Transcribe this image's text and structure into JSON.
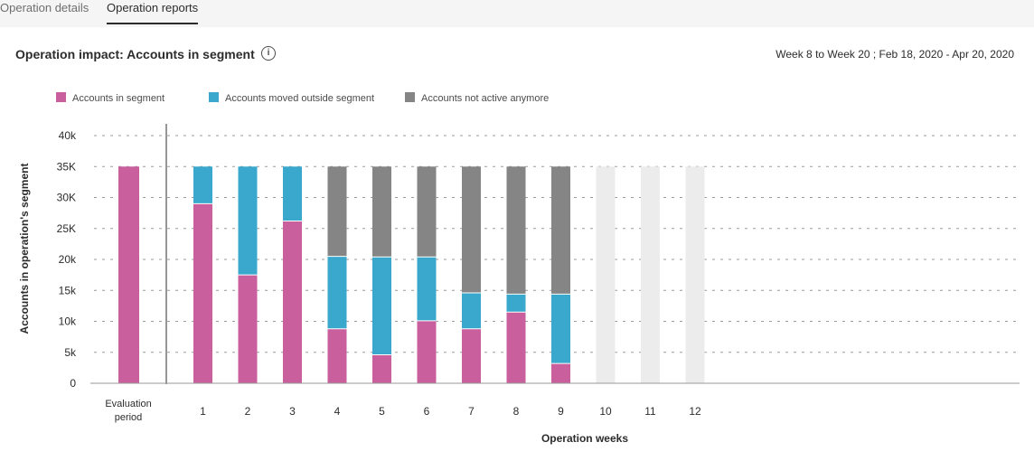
{
  "tabs": [
    {
      "label": "Operation details",
      "active": false
    },
    {
      "label": "Operation reports",
      "active": true
    }
  ],
  "header": {
    "title": "Operation impact: Accounts in segment",
    "info_icon": "info-icon",
    "date_range": "Week 8 to Week 20 ;  Feb 18, 2020 - Apr 20, 2020"
  },
  "colors": {
    "in_segment": "#c95f9c",
    "moved_outside": "#3aa8cc",
    "not_active": "#858585",
    "placeholder": "#ececec"
  },
  "chart_data": {
    "type": "bar",
    "stacked": true,
    "ylabel": "Accounts in operation's segment",
    "xlabel": "Operation weeks",
    "ylim": [
      0,
      40000
    ],
    "yticks": [
      {
        "value": 0,
        "label": "0"
      },
      {
        "value": 5000,
        "label": "5k"
      },
      {
        "value": 10000,
        "label": "10k"
      },
      {
        "value": 15000,
        "label": "15k"
      },
      {
        "value": 20000,
        "label": "20k"
      },
      {
        "value": 25000,
        "label": "25K"
      },
      {
        "value": 30000,
        "label": "30K"
      },
      {
        "value": 35000,
        "label": "35K"
      },
      {
        "value": 40000,
        "label": "40k"
      }
    ],
    "grid": true,
    "legend_position": "top-left",
    "evaluation": {
      "label_line1": "Evaluation",
      "label_line2": "period",
      "value": 35000
    },
    "categories": [
      "1",
      "2",
      "3",
      "4",
      "5",
      "6",
      "7",
      "8",
      "9",
      "10",
      "11",
      "12"
    ],
    "series": [
      {
        "name": "Accounts in segment",
        "color_key": "in_segment",
        "values": [
          29000,
          17500,
          26200,
          8800,
          4600,
          10100,
          8800,
          11500,
          3200,
          null,
          null,
          null
        ]
      },
      {
        "name": "Accounts moved outside segment",
        "color_key": "moved_outside",
        "values": [
          6000,
          17500,
          8800,
          11700,
          15800,
          10300,
          5800,
          2900,
          11200,
          null,
          null,
          null
        ]
      },
      {
        "name": "Accounts not active anymore",
        "color_key": "not_active",
        "values": [
          0,
          0,
          0,
          14500,
          14600,
          14600,
          20400,
          20600,
          20600,
          null,
          null,
          null
        ]
      }
    ],
    "placeholder_weeks": [
      "10",
      "11",
      "12"
    ]
  }
}
